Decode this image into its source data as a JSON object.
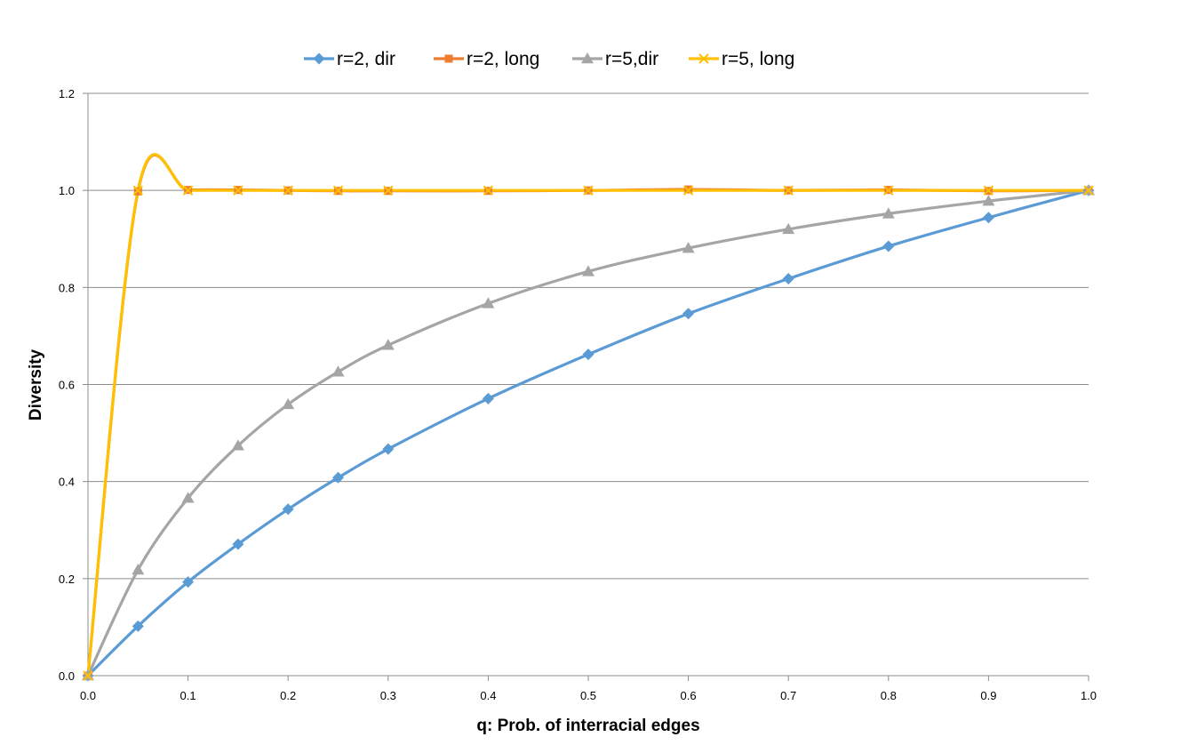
{
  "chart_data": {
    "type": "line",
    "title": "",
    "xlabel": "q: Prob. of interracial  edges",
    "ylabel": "Diversity",
    "xlim": [
      0.0,
      1.0
    ],
    "ylim": [
      0.0,
      1.2
    ],
    "xticks": [
      "0.0",
      "0.1",
      "0.2",
      "0.3",
      "0.4",
      "0.5",
      "0.6",
      "0.7",
      "0.8",
      "0.9",
      "1.0"
    ],
    "yticks": [
      "0.0",
      "0.2",
      "0.4",
      "0.6",
      "0.8",
      "1.0",
      "1.2"
    ],
    "x": [
      0.0,
      0.05,
      0.1,
      0.15,
      0.2,
      0.25,
      0.3,
      0.4,
      0.5,
      0.6,
      0.7,
      0.8,
      0.9,
      1.0
    ],
    "grid": "horizontal",
    "legend_position": "top",
    "smooth": true,
    "series": [
      {
        "name": "r=2, dir",
        "color": "#5B9BD5",
        "marker": "diamond",
        "values": [
          0.0,
          0.102,
          0.193,
          0.271,
          0.343,
          0.408,
          0.467,
          0.571,
          0.662,
          0.746,
          0.818,
          0.885,
          0.944,
          1.0
        ]
      },
      {
        "name": "r=2, long",
        "color": "#ED7D31",
        "marker": "square",
        "values": [
          0.0,
          0.998,
          1.001,
          1.001,
          1.0,
          0.999,
          0.999,
          0.999,
          1.0,
          1.002,
          1.0,
          1.001,
          0.999,
          1.0
        ]
      },
      {
        "name": "r=5,dir",
        "color": "#A5A5A5",
        "marker": "triangle",
        "values": [
          0.0,
          0.218,
          0.366,
          0.474,
          0.559,
          0.626,
          0.681,
          0.767,
          0.833,
          0.881,
          0.92,
          0.952,
          0.978,
          1.0
        ]
      },
      {
        "name": "r=5, long",
        "color": "#FFC000",
        "marker": "x",
        "values": [
          0.0,
          1.0,
          1.0,
          1.0,
          1.0,
          1.0,
          1.0,
          1.0,
          1.0,
          1.0,
          1.0,
          1.0,
          1.0,
          1.0
        ]
      }
    ]
  }
}
